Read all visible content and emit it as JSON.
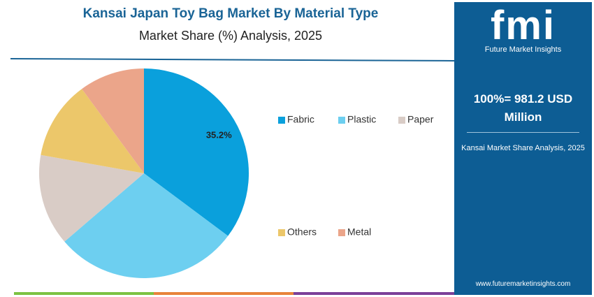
{
  "chart_data": {
    "type": "pie",
    "title": "Kansai Japan Toy Bag Market By Material Type",
    "subtitle": "Market Share (%) Analysis, 2025",
    "categories": [
      "Fabric",
      "Plastic",
      "Paper",
      "Others",
      "Metal"
    ],
    "values": [
      35.2,
      28.5,
      14.1,
      12.1,
      10.1
    ],
    "value_labels": [
      "35.2%",
      null,
      null,
      null,
      null
    ],
    "colors": [
      "#0aa0dc",
      "#6dcff0",
      "#d9ccc6",
      "#ecc76a",
      "#eba58a"
    ]
  },
  "panel": {
    "logo": "fmi",
    "brand": "Future Market Insights",
    "total": "100%= 981.2 USD Million",
    "caption": "Kansai Market Share Analysis, 2025",
    "url": "www.futuremarketinsights.com"
  }
}
